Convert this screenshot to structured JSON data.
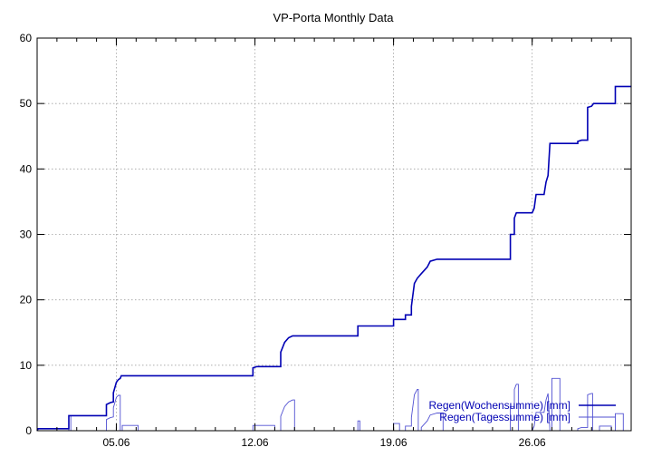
{
  "chart_data": {
    "type": "line",
    "title": "VP-Porta Monthly Data",
    "xlabel": "",
    "ylabel": "",
    "x_unit": "day of June",
    "xlim": [
      1,
      31
    ],
    "ylim": [
      0,
      60
    ],
    "y_ticks": [
      0,
      10,
      20,
      30,
      40,
      50,
      60
    ],
    "x_ticks": [
      {
        "value": 5,
        "label": "05.06"
      },
      {
        "value": 12,
        "label": "12.06"
      },
      {
        "value": 19,
        "label": "19.06"
      },
      {
        "value": 26,
        "label": "26.06"
      }
    ],
    "grid": true,
    "legend_position": "bottom-right",
    "series": [
      {
        "name": "Regen(Wochensumme) [mm]",
        "color": "#0000b4",
        "style": "step",
        "points": [
          [
            1.0,
            0.0
          ],
          [
            1.05,
            0.3
          ],
          [
            2.0,
            0.3
          ],
          [
            2.6,
            0.3
          ],
          [
            2.6,
            2.3
          ],
          [
            4.5,
            2.3
          ],
          [
            4.5,
            4.0
          ],
          [
            4.7,
            4.3
          ],
          [
            4.85,
            4.4
          ],
          [
            4.85,
            5.8
          ],
          [
            5.0,
            7.4
          ],
          [
            5.1,
            7.8
          ],
          [
            5.2,
            8.0
          ],
          [
            5.25,
            8.4
          ],
          [
            11.9,
            8.4
          ],
          [
            11.9,
            9.6
          ],
          [
            12.1,
            9.8
          ],
          [
            13.3,
            9.8
          ],
          [
            13.3,
            12.0
          ],
          [
            13.5,
            13.5
          ],
          [
            13.7,
            14.2
          ],
          [
            13.9,
            14.5
          ],
          [
            17.2,
            14.5
          ],
          [
            17.2,
            16.0
          ],
          [
            19.0,
            16.0
          ],
          [
            19.0,
            17.0
          ],
          [
            19.6,
            17.0
          ],
          [
            19.6,
            17.7
          ],
          [
            19.9,
            17.7
          ],
          [
            19.9,
            19.0
          ],
          [
            20.05,
            22.5
          ],
          [
            20.2,
            23.3
          ],
          [
            20.4,
            24.0
          ],
          [
            20.55,
            24.5
          ],
          [
            20.7,
            25.0
          ],
          [
            20.85,
            25.9
          ],
          [
            21.2,
            26.2
          ],
          [
            24.9,
            26.2
          ],
          [
            24.9,
            30.0
          ],
          [
            25.1,
            30.0
          ],
          [
            25.1,
            32.5
          ],
          [
            25.2,
            33.3
          ],
          [
            26.0,
            33.3
          ],
          [
            26.1,
            34.0
          ],
          [
            26.2,
            36.1
          ],
          [
            26.6,
            36.1
          ],
          [
            26.7,
            38.0
          ],
          [
            26.8,
            39.0
          ],
          [
            26.9,
            43.9
          ],
          [
            28.3,
            43.9
          ],
          [
            28.3,
            44.2
          ],
          [
            28.5,
            44.4
          ],
          [
            28.8,
            44.4
          ],
          [
            28.8,
            49.4
          ],
          [
            29.0,
            49.6
          ],
          [
            29.1,
            50.0
          ],
          [
            30.2,
            50.0
          ],
          [
            30.2,
            52.6
          ],
          [
            31.0,
            52.6
          ]
        ]
      },
      {
        "name": "Regen(Tagessumme) [mm]",
        "color": "#5050d2",
        "style": "step",
        "points": [
          [
            1.0,
            0.0
          ],
          [
            2.6,
            0.0
          ],
          [
            2.6,
            2.3
          ],
          [
            2.7,
            2.3
          ],
          [
            2.7,
            0.0
          ],
          [
            4.5,
            0.0
          ],
          [
            4.5,
            1.7
          ],
          [
            4.7,
            2.0
          ],
          [
            4.85,
            2.1
          ],
          [
            4.85,
            3.5
          ],
          [
            5.0,
            5.1
          ],
          [
            5.1,
            5.4
          ],
          [
            5.2,
            5.4
          ],
          [
            5.2,
            0.0
          ],
          [
            5.3,
            0.0
          ],
          [
            5.3,
            0.8
          ],
          [
            6.1,
            0.8
          ],
          [
            6.1,
            0.0
          ],
          [
            11.9,
            0.0
          ],
          [
            11.9,
            0.8
          ],
          [
            13.0,
            0.8
          ],
          [
            13.0,
            0.0
          ],
          [
            13.3,
            0.0
          ],
          [
            13.3,
            2.2
          ],
          [
            13.5,
            3.7
          ],
          [
            13.7,
            4.4
          ],
          [
            13.9,
            4.7
          ],
          [
            14.0,
            4.7
          ],
          [
            14.0,
            0.0
          ],
          [
            17.2,
            0.0
          ],
          [
            17.2,
            1.5
          ],
          [
            17.3,
            1.5
          ],
          [
            17.3,
            0.0
          ],
          [
            19.0,
            0.0
          ],
          [
            19.0,
            1.1
          ],
          [
            19.3,
            1.1
          ],
          [
            19.3,
            0.0
          ],
          [
            19.6,
            0.0
          ],
          [
            19.6,
            0.7
          ],
          [
            19.9,
            0.7
          ],
          [
            19.9,
            2.0
          ],
          [
            20.05,
            5.5
          ],
          [
            20.2,
            6.3
          ],
          [
            20.25,
            6.3
          ],
          [
            20.25,
            0.0
          ],
          [
            20.4,
            0.0
          ],
          [
            20.4,
            0.5
          ],
          [
            20.55,
            1.0
          ],
          [
            20.7,
            1.5
          ],
          [
            20.85,
            2.4
          ],
          [
            21.2,
            2.7
          ],
          [
            21.5,
            2.7
          ],
          [
            21.5,
            0.0
          ],
          [
            24.9,
            0.0
          ],
          [
            24.9,
            3.7
          ],
          [
            25.1,
            3.7
          ],
          [
            25.1,
            6.3
          ],
          [
            25.2,
            7.1
          ],
          [
            25.3,
            7.1
          ],
          [
            25.3,
            0.0
          ],
          [
            26.0,
            0.0
          ],
          [
            26.1,
            0.7
          ],
          [
            26.2,
            2.8
          ],
          [
            26.6,
            2.8
          ],
          [
            26.7,
            4.7
          ],
          [
            26.8,
            5.7
          ],
          [
            26.9,
            0.0
          ],
          [
            27.0,
            0.0
          ],
          [
            27.0,
            8.0
          ],
          [
            27.4,
            8.0
          ],
          [
            27.4,
            0.0
          ],
          [
            28.3,
            0.0
          ],
          [
            28.3,
            0.3
          ],
          [
            28.5,
            0.5
          ],
          [
            28.8,
            0.5
          ],
          [
            28.8,
            5.5
          ],
          [
            29.0,
            5.7
          ],
          [
            29.05,
            5.7
          ],
          [
            29.05,
            0.0
          ],
          [
            29.4,
            0.0
          ],
          [
            29.4,
            0.7
          ],
          [
            30.0,
            0.7
          ],
          [
            30.0,
            0.0
          ],
          [
            30.2,
            0.0
          ],
          [
            30.2,
            2.6
          ],
          [
            30.6,
            2.6
          ],
          [
            30.6,
            0.0
          ],
          [
            31.0,
            0.0
          ]
        ]
      }
    ]
  }
}
